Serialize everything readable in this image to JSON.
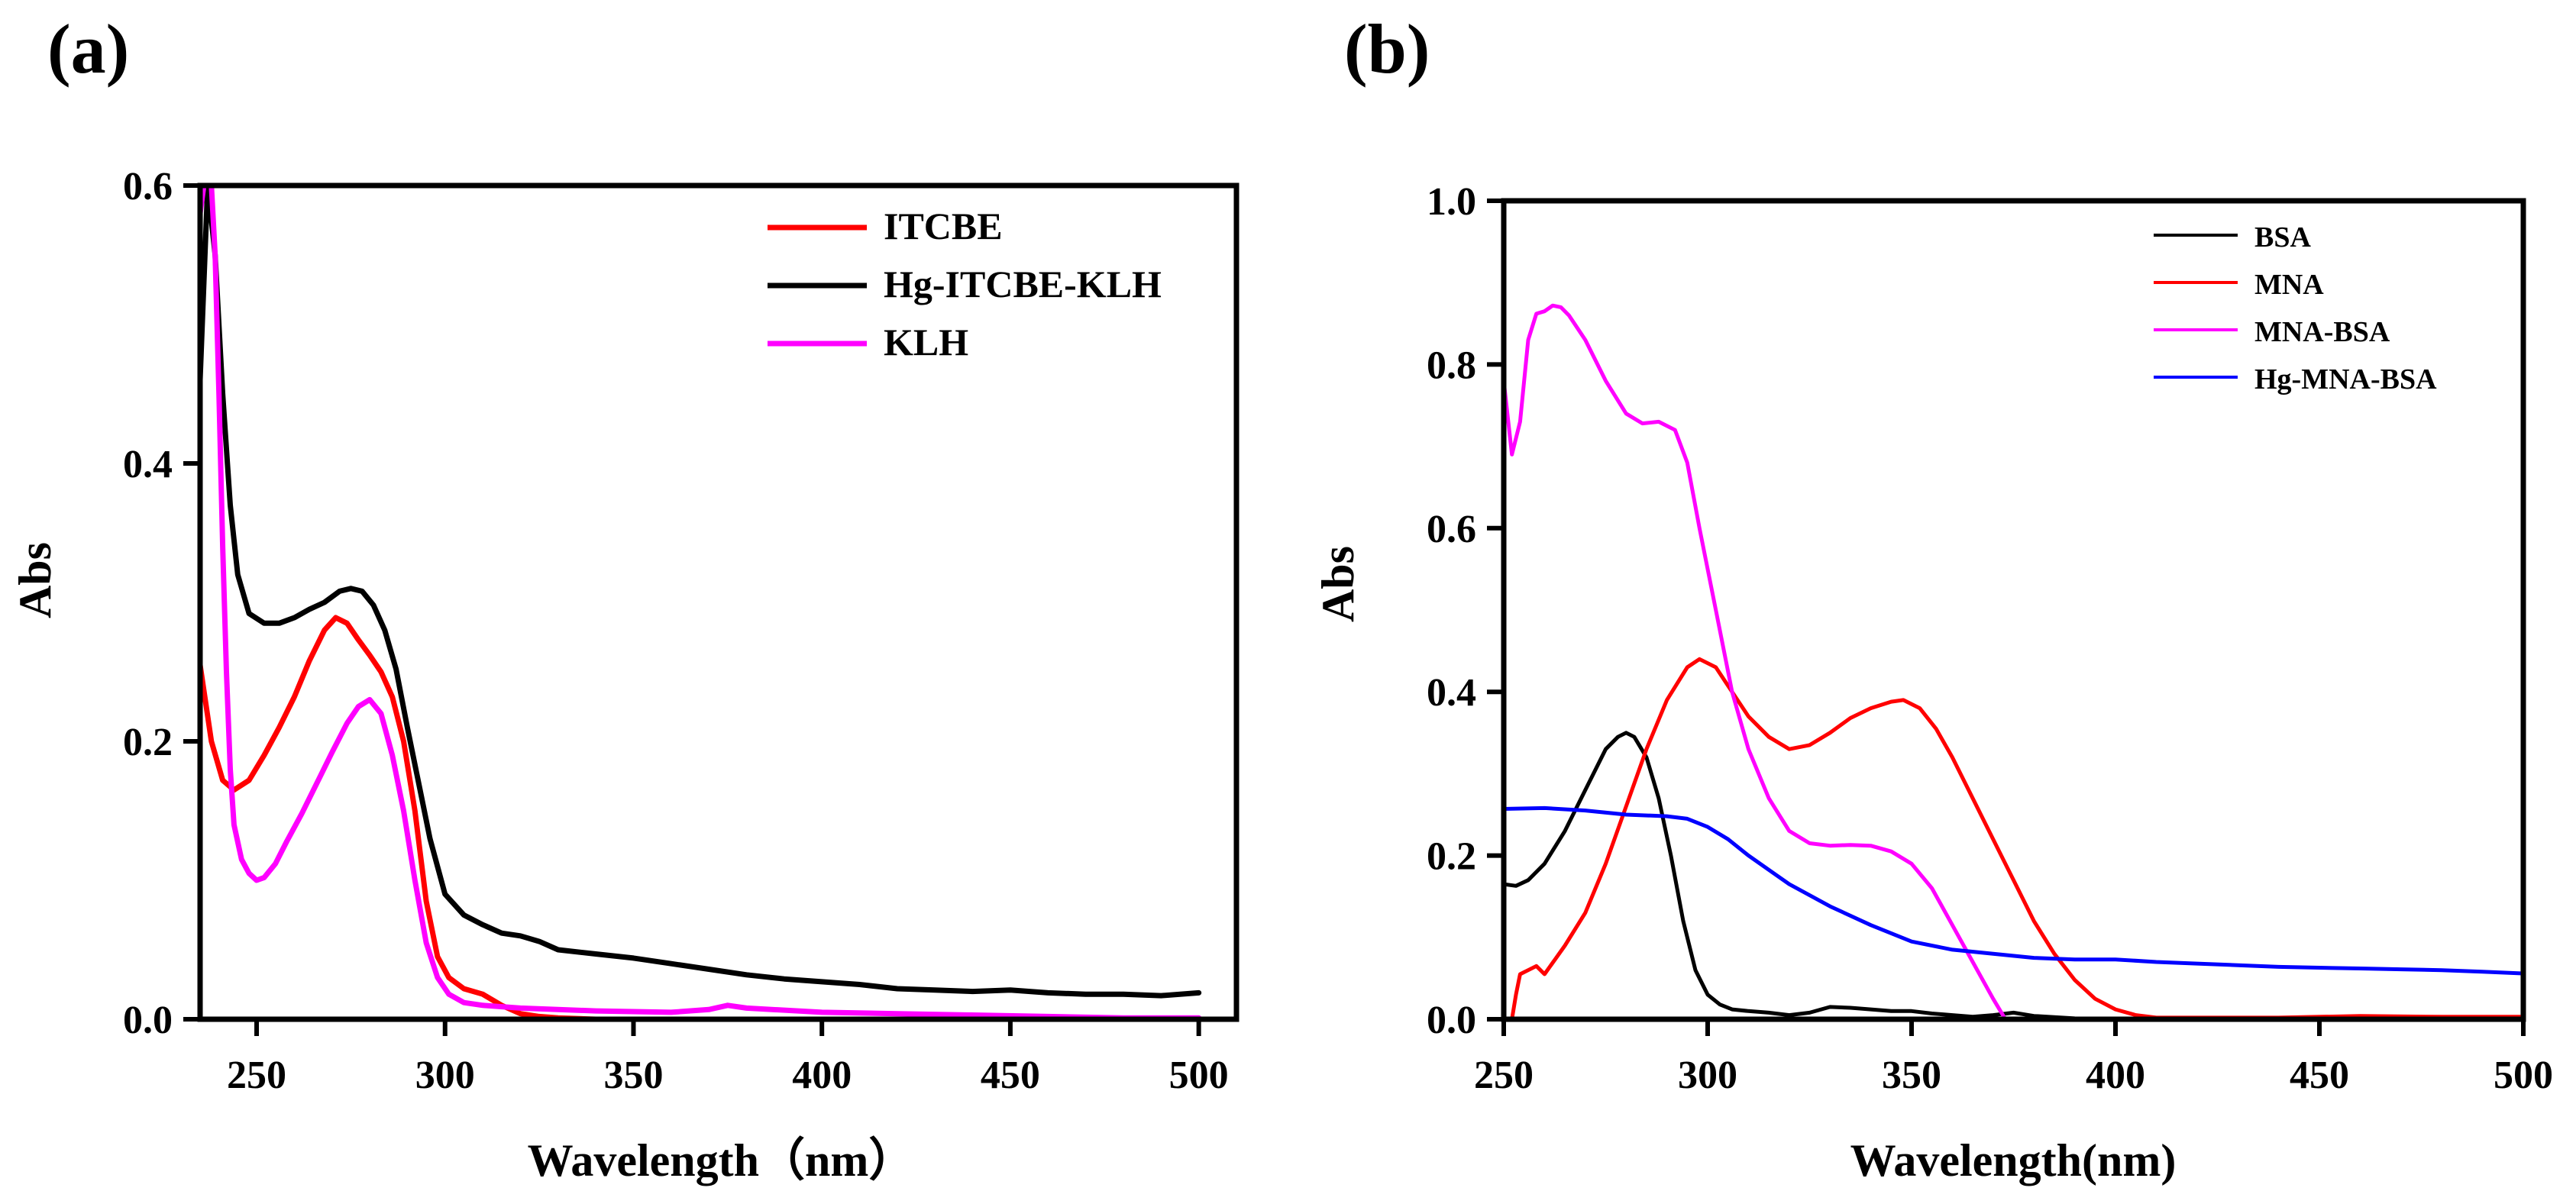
{
  "chart_data": [
    {
      "panel": "(a)",
      "type": "line",
      "title": "",
      "xlabel": "Wavelength（nm）",
      "ylabel": "Abs",
      "xlim": [
        235,
        510
      ],
      "ylim": [
        0,
        0.6
      ],
      "xticks": [
        250,
        300,
        350,
        400,
        450,
        500
      ],
      "xtick_labels": [
        "250",
        "300",
        "350",
        "400",
        "450",
        "500"
      ],
      "yticks": [
        0,
        0.2,
        0.4,
        0.6
      ],
      "ytick_labels": [
        "0.0",
        "0.2",
        "0.4",
        "0.6"
      ],
      "legend_position": "top-right",
      "grid": false,
      "series": [
        {
          "name": "ITCBE",
          "color": "#ff0000",
          "x": [
            235,
            238,
            241,
            244,
            248,
            252,
            256,
            260,
            264,
            268,
            271,
            274,
            277,
            280,
            283,
            286,
            289,
            292,
            295,
            298,
            301,
            305,
            310,
            315,
            320,
            325,
            330,
            340,
            360,
            380,
            400,
            430,
            460,
            490,
            500
          ],
          "y": [
            0.255,
            0.2,
            0.172,
            0.165,
            0.172,
            0.19,
            0.21,
            0.232,
            0.258,
            0.28,
            0.289,
            0.285,
            0.273,
            0.262,
            0.25,
            0.232,
            0.2,
            0.15,
            0.085,
            0.045,
            0.03,
            0.022,
            0.018,
            0.01,
            0.004,
            0.002,
            0.001,
            0.0,
            0.0,
            0.0,
            0.0,
            0.0,
            0.0,
            0.0,
            0.0
          ]
        },
        {
          "name": "Hg-ITCBE-KLH",
          "color": "#000000",
          "x": [
            235,
            237,
            239,
            241,
            243,
            245,
            248,
            252,
            256,
            260,
            264,
            268,
            272,
            275,
            278,
            281,
            284,
            287,
            290,
            293,
            296,
            300,
            305,
            310,
            315,
            320,
            325,
            330,
            340,
            350,
            360,
            370,
            380,
            390,
            400,
            410,
            420,
            430,
            440,
            450,
            460,
            470,
            480,
            490,
            500
          ],
          "y": [
            0.46,
            0.6,
            0.55,
            0.45,
            0.37,
            0.32,
            0.292,
            0.285,
            0.285,
            0.289,
            0.295,
            0.3,
            0.308,
            0.31,
            0.308,
            0.298,
            0.28,
            0.252,
            0.21,
            0.17,
            0.13,
            0.09,
            0.075,
            0.068,
            0.062,
            0.06,
            0.056,
            0.05,
            0.047,
            0.044,
            0.04,
            0.036,
            0.032,
            0.029,
            0.027,
            0.025,
            0.022,
            0.021,
            0.02,
            0.021,
            0.019,
            0.018,
            0.018,
            0.017,
            0.019
          ]
        },
        {
          "name": "KLH",
          "color": "#ff00ff",
          "x": [
            235,
            236,
            237,
            238,
            239,
            240,
            241,
            242,
            243,
            244,
            246,
            248,
            250,
            252,
            255,
            258,
            262,
            266,
            270,
            274,
            277,
            280,
            283,
            286,
            289,
            292,
            295,
            298,
            301,
            305,
            310,
            320,
            340,
            360,
            370,
            375,
            380,
            400,
            420,
            440,
            460,
            480,
            500
          ],
          "y": [
            0.58,
            0.6,
            0.6,
            0.6,
            0.55,
            0.45,
            0.34,
            0.25,
            0.18,
            0.14,
            0.115,
            0.105,
            0.1,
            0.102,
            0.112,
            0.128,
            0.148,
            0.17,
            0.192,
            0.213,
            0.225,
            0.23,
            0.22,
            0.19,
            0.15,
            0.1,
            0.055,
            0.03,
            0.018,
            0.012,
            0.01,
            0.008,
            0.006,
            0.005,
            0.007,
            0.01,
            0.008,
            0.005,
            0.004,
            0.003,
            0.002,
            0.001,
            0.001
          ]
        }
      ]
    },
    {
      "panel": "(b)",
      "type": "line",
      "title": "",
      "xlabel": "Wavelength(nm)",
      "ylabel": "Abs",
      "xlim": [
        250,
        500
      ],
      "ylim": [
        0,
        1.0
      ],
      "xticks": [
        250,
        300,
        350,
        400,
        450,
        500
      ],
      "xtick_labels": [
        "250",
        "300",
        "350",
        "400",
        "450",
        "500"
      ],
      "yticks": [
        0,
        0.2,
        0.4,
        0.6,
        0.8,
        1.0
      ],
      "ytick_labels": [
        "0.0",
        "0.2",
        "0.4",
        "0.6",
        "0.8",
        "1.0"
      ],
      "legend_position": "top-right",
      "grid": false,
      "series": [
        {
          "name": "BSA",
          "color": "#000000",
          "x": [
            250,
            253,
            256,
            260,
            265,
            270,
            275,
            278,
            280,
            282,
            285,
            288,
            291,
            294,
            297,
            300,
            303,
            306,
            310,
            315,
            320,
            325,
            330,
            335,
            340,
            345,
            350,
            355,
            360,
            365,
            370,
            375,
            380,
            390,
            400,
            450,
            500
          ],
          "y": [
            0.165,
            0.163,
            0.17,
            0.19,
            0.23,
            0.28,
            0.33,
            0.345,
            0.35,
            0.345,
            0.32,
            0.27,
            0.2,
            0.12,
            0.06,
            0.03,
            0.018,
            0.012,
            0.01,
            0.008,
            0.005,
            0.008,
            0.015,
            0.014,
            0.012,
            0.01,
            0.01,
            0.007,
            0.005,
            0.003,
            0.005,
            0.008,
            0.004,
            0.001,
            0.0,
            0.0,
            0.0
          ]
        },
        {
          "name": "MNA",
          "color": "#ff0000",
          "x": [
            252,
            253,
            254,
            256,
            258,
            260,
            265,
            270,
            275,
            280,
            285,
            290,
            295,
            298,
            302,
            306,
            310,
            315,
            320,
            325,
            330,
            335,
            340,
            345,
            348,
            352,
            356,
            360,
            365,
            370,
            375,
            380,
            385,
            390,
            395,
            400,
            405,
            410,
            420,
            440,
            460,
            480,
            500
          ],
          "y": [
            0.0,
            0.03,
            0.055,
            0.06,
            0.065,
            0.055,
            0.09,
            0.13,
            0.19,
            0.26,
            0.33,
            0.39,
            0.43,
            0.44,
            0.43,
            0.4,
            0.37,
            0.345,
            0.33,
            0.335,
            0.35,
            0.368,
            0.38,
            0.388,
            0.39,
            0.38,
            0.355,
            0.32,
            0.27,
            0.22,
            0.17,
            0.12,
            0.08,
            0.048,
            0.025,
            0.012,
            0.005,
            0.002,
            0.002,
            0.002,
            0.004,
            0.003,
            0.003
          ]
        },
        {
          "name": "MNA-BSA",
          "color": "#ff00ff",
          "x": [
            250,
            252,
            254,
            256,
            258,
            260,
            262,
            264,
            266,
            270,
            275,
            280,
            284,
            288,
            292,
            295,
            298,
            302,
            306,
            310,
            315,
            320,
            325,
            330,
            335,
            340,
            345,
            350,
            355,
            360,
            365,
            370,
            373
          ],
          "y": [
            0.78,
            0.69,
            0.73,
            0.83,
            0.862,
            0.865,
            0.872,
            0.87,
            0.86,
            0.83,
            0.78,
            0.74,
            0.728,
            0.73,
            0.72,
            0.68,
            0.6,
            0.5,
            0.4,
            0.33,
            0.27,
            0.23,
            0.215,
            0.212,
            0.213,
            0.212,
            0.205,
            0.19,
            0.16,
            0.115,
            0.07,
            0.025,
            0.0
          ]
        },
        {
          "name": "Hg-MNA-BSA",
          "color": "#0000ff",
          "x": [
            250,
            260,
            270,
            280,
            290,
            295,
            300,
            305,
            310,
            320,
            330,
            340,
            350,
            360,
            370,
            380,
            390,
            400,
            410,
            420,
            430,
            440,
            450,
            460,
            470,
            480,
            490,
            500
          ],
          "y": [
            0.257,
            0.258,
            0.255,
            0.25,
            0.248,
            0.245,
            0.235,
            0.22,
            0.2,
            0.165,
            0.138,
            0.115,
            0.095,
            0.085,
            0.08,
            0.075,
            0.073,
            0.073,
            0.07,
            0.068,
            0.066,
            0.064,
            0.063,
            0.062,
            0.061,
            0.06,
            0.058,
            0.056
          ]
        }
      ]
    }
  ]
}
